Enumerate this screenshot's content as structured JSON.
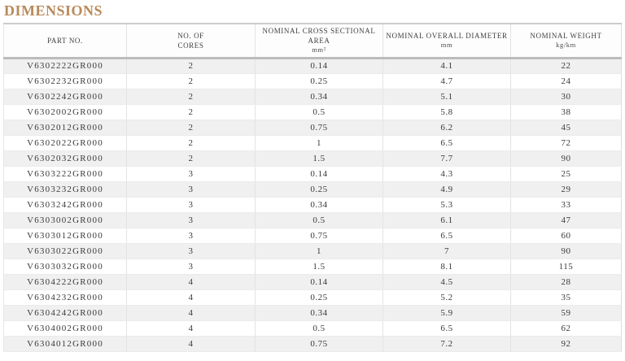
{
  "page": {
    "title": "DIMENSIONS"
  },
  "style": {
    "title_color": "#b9895a",
    "stripe_color": "#f0f0f0",
    "header_border_color": "#bcbcbc",
    "text_color": "#3a3a3a"
  },
  "table": {
    "columns": [
      {
        "label": "PART NO.",
        "unit": ""
      },
      {
        "label": "NO. OF\nCORES",
        "unit": ""
      },
      {
        "label": "NOMINAL CROSS SECTIONAL AREA",
        "unit": "mm²"
      },
      {
        "label": "NOMINAL OVERALL DIAMETER",
        "unit": "mm"
      },
      {
        "label": "NOMINAL WEIGHT",
        "unit": "kg/km"
      }
    ],
    "rows": [
      {
        "part_no": "V6302222GR000",
        "cores": "2",
        "area": "0.14",
        "diameter": "4.1",
        "weight": "22"
      },
      {
        "part_no": "V6302232GR000",
        "cores": "2",
        "area": "0.25",
        "diameter": "4.7",
        "weight": "24"
      },
      {
        "part_no": "V6302242GR000",
        "cores": "2",
        "area": "0.34",
        "diameter": "5.1",
        "weight": "30"
      },
      {
        "part_no": "V6302002GR000",
        "cores": "2",
        "area": "0.5",
        "diameter": "5.8",
        "weight": "38"
      },
      {
        "part_no": "V6302012GR000",
        "cores": "2",
        "area": "0.75",
        "diameter": "6.2",
        "weight": "45"
      },
      {
        "part_no": "V6302022GR000",
        "cores": "2",
        "area": "1",
        "diameter": "6.5",
        "weight": "72"
      },
      {
        "part_no": "V6302032GR000",
        "cores": "2",
        "area": "1.5",
        "diameter": "7.7",
        "weight": "90"
      },
      {
        "part_no": "V6303222GR000",
        "cores": "3",
        "area": "0.14",
        "diameter": "4.3",
        "weight": "25"
      },
      {
        "part_no": "V6303232GR000",
        "cores": "3",
        "area": "0.25",
        "diameter": "4.9",
        "weight": "29"
      },
      {
        "part_no": "V6303242GR000",
        "cores": "3",
        "area": "0.34",
        "diameter": "5.3",
        "weight": "33"
      },
      {
        "part_no": "V6303002GR000",
        "cores": "3",
        "area": "0.5",
        "diameter": "6.1",
        "weight": "47"
      },
      {
        "part_no": "V6303012GR000",
        "cores": "3",
        "area": "0.75",
        "diameter": "6.5",
        "weight": "60"
      },
      {
        "part_no": "V6303022GR000",
        "cores": "3",
        "area": "1",
        "diameter": "7",
        "weight": "90"
      },
      {
        "part_no": "V6303032GR000",
        "cores": "3",
        "area": "1.5",
        "diameter": "8.1",
        "weight": "115"
      },
      {
        "part_no": "V6304222GR000",
        "cores": "4",
        "area": "0.14",
        "diameter": "4.5",
        "weight": "28"
      },
      {
        "part_no": "V6304232GR000",
        "cores": "4",
        "area": "0.25",
        "diameter": "5.2",
        "weight": "35"
      },
      {
        "part_no": "V6304242GR000",
        "cores": "4",
        "area": "0.34",
        "diameter": "5.9",
        "weight": "59"
      },
      {
        "part_no": "V6304002GR000",
        "cores": "4",
        "area": "0.5",
        "diameter": "6.5",
        "weight": "62"
      },
      {
        "part_no": "V6304012GR000",
        "cores": "4",
        "area": "0.75",
        "diameter": "7.2",
        "weight": "92"
      }
    ]
  }
}
